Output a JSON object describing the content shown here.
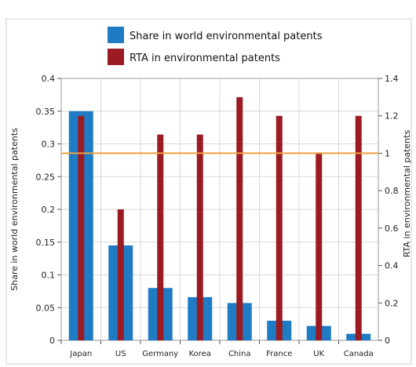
{
  "chart_data": {
    "type": "bar",
    "categories": [
      "Japan",
      "US",
      "Germany",
      "Korea",
      "China",
      "France",
      "UK",
      "Canada"
    ],
    "series": [
      {
        "name": "Share in world environmental patents",
        "axis": "left",
        "color": "#1f7bc4",
        "values": [
          0.35,
          0.145,
          0.08,
          0.066,
          0.057,
          0.03,
          0.022,
          0.01
        ]
      },
      {
        "name": "RTA in environmental patents",
        "axis": "right",
        "color": "#9b1b22",
        "values": [
          1.2,
          0.7,
          1.1,
          1.1,
          1.3,
          1.2,
          1.0,
          1.2
        ]
      }
    ],
    "reference_line": {
      "axis": "right",
      "value": 1.0,
      "color": "#f0a040"
    },
    "ylabel": "Share in world environmental patents",
    "y2label": "RTA in environmental patents",
    "ylim": [
      0,
      0.4
    ],
    "y2lim": [
      0,
      1.4
    ],
    "yticks": [
      "0",
      "0.05",
      "0.1",
      "0.15",
      "0.2",
      "0.25",
      "0.3",
      "0.35",
      "0.4"
    ],
    "y2ticks": [
      "0",
      "0.2",
      "0.4",
      "0.6",
      "0.8",
      "1",
      "1.2",
      "1.4"
    ],
    "grid": true,
    "legend_position": "top-center"
  }
}
